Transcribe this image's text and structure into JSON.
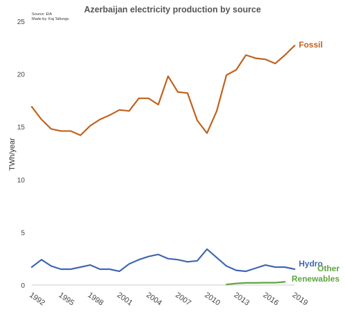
{
  "chart_data": {
    "type": "line",
    "title": "Azerbaijan electricity production by source",
    "source_line": "Source: EIA",
    "credit_line": "Made by: Kaj Tallungs",
    "ylabel": "TWh/year",
    "xlabel": "",
    "ylim": [
      0,
      25
    ],
    "xlim": [
      1992,
      2019
    ],
    "y_ticks": [
      "0",
      "5",
      "10",
      "15",
      "20",
      "25"
    ],
    "x_ticks": [
      "1992",
      "1995",
      "1998",
      "2001",
      "2004",
      "2007",
      "2010",
      "2013",
      "2016",
      "2019"
    ],
    "grid": false,
    "series": [
      {
        "name": "Fossil",
        "color": "#c0611e",
        "x": [
          1992,
          1993,
          1994,
          1995,
          1996,
          1997,
          1998,
          1999,
          2000,
          2001,
          2002,
          2003,
          2004,
          2005,
          2006,
          2007,
          2008,
          2009,
          2010,
          2011,
          2012,
          2013,
          2014,
          2015,
          2016,
          2017,
          2018,
          2019
        ],
        "values": [
          16.9,
          15.7,
          14.8,
          14.6,
          14.6,
          14.2,
          15.1,
          15.7,
          16.1,
          16.6,
          16.5,
          17.7,
          17.7,
          17.1,
          19.8,
          18.3,
          18.2,
          15.6,
          14.4,
          16.5,
          19.9,
          20.4,
          21.8,
          21.5,
          21.4,
          21.0,
          21.8,
          22.7
        ]
      },
      {
        "name": "Hydro",
        "color": "#3f66b3",
        "x": [
          1992,
          1993,
          1994,
          1995,
          1996,
          1997,
          1998,
          1999,
          2000,
          2001,
          2002,
          2003,
          2004,
          2005,
          2006,
          2007,
          2008,
          2009,
          2010,
          2011,
          2012,
          2013,
          2014,
          2015,
          2016,
          2017,
          2018,
          2019
        ],
        "values": [
          1.7,
          2.4,
          1.8,
          1.5,
          1.5,
          1.7,
          1.9,
          1.5,
          1.5,
          1.3,
          2.0,
          2.4,
          2.7,
          2.9,
          2.5,
          2.4,
          2.2,
          2.3,
          3.4,
          2.6,
          1.8,
          1.4,
          1.3,
          1.6,
          1.9,
          1.7,
          1.7,
          1.5
        ]
      },
      {
        "name": "Other Renewables",
        "label_lines": [
          "Other",
          "Renewables"
        ],
        "color": "#5fa33f",
        "x": [
          2012,
          2013,
          2014,
          2015,
          2016,
          2017,
          2018
        ],
        "values": [
          0.05,
          0.15,
          0.2,
          0.2,
          0.22,
          0.22,
          0.3
        ]
      }
    ]
  }
}
